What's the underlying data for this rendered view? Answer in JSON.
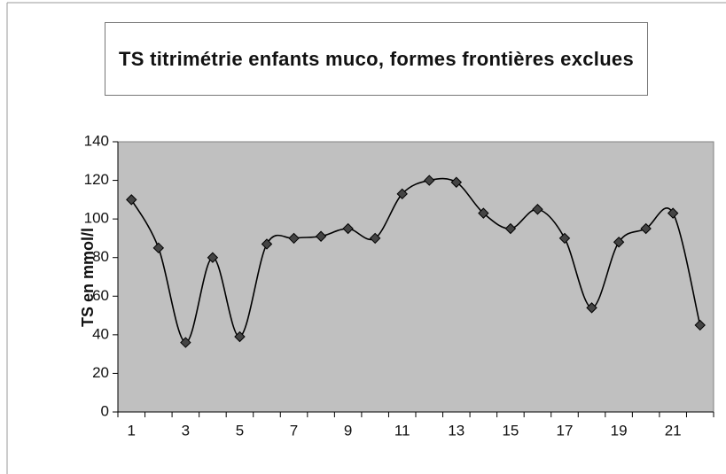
{
  "chart_data": {
    "type": "line",
    "title": "TS titrimétrie enfants muco, formes frontières exclues",
    "y_label": "TS en mmol/l",
    "categories": [
      1,
      null,
      3,
      null,
      5,
      null,
      7,
      null,
      9,
      null,
      11,
      null,
      13,
      null,
      15,
      null,
      17,
      null,
      19,
      null,
      21,
      null
    ],
    "series": [
      {
        "name": "TS",
        "color": "#000000",
        "values": [
          110,
          85,
          36,
          80,
          39,
          87,
          90,
          91,
          95,
          90,
          113,
          120,
          119,
          103,
          95,
          105,
          90,
          54,
          88,
          95,
          103,
          45
        ]
      }
    ],
    "ylim": [
      0,
      140
    ],
    "yticks": [
      0,
      20,
      40,
      60,
      80,
      100,
      120,
      140
    ],
    "grid": false,
    "smooth": true,
    "plot_background": "#c0c0c0"
  }
}
